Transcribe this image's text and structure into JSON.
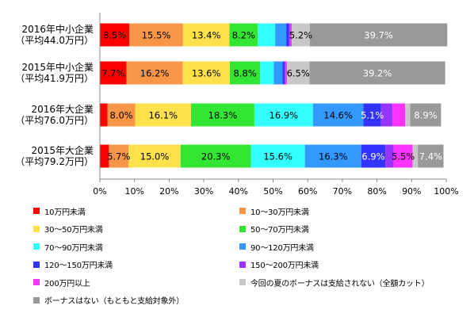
{
  "chart_data": {
    "type": "bar",
    "orientation": "horizontal",
    "stacked": true,
    "categories": [
      [
        "2016年中小企業",
        "（平均44.0万円）"
      ],
      [
        "2015年中小企業",
        "（平均41.9万円）"
      ],
      [
        "2016年大企業",
        "（平均76.0万円）"
      ],
      [
        "2015年大企業",
        "（平均79.2万円）"
      ]
    ],
    "series": [
      {
        "name": "10万円未満",
        "color": "#ff0000",
        "values": [
          8.5,
          7.7,
          2.2,
          2.6
        ]
      },
      {
        "name": "10～30万円未満",
        "color": "#f79646",
        "values": [
          15.5,
          16.2,
          8.0,
          5.7
        ]
      },
      {
        "name": "30～50万円未満",
        "color": "#ffe04d",
        "values": [
          13.4,
          13.6,
          16.1,
          15.0
        ]
      },
      {
        "name": "50～70万円未満",
        "color": "#33e633",
        "values": [
          8.2,
          8.8,
          18.3,
          20.3
        ]
      },
      {
        "name": "70～90万円未満",
        "color": "#33ffff",
        "values": [
          5.0,
          3.9,
          16.9,
          15.6
        ]
      },
      {
        "name": "90～120万円未満",
        "color": "#3399ff",
        "values": [
          3.2,
          2.5,
          14.6,
          16.3
        ]
      },
      {
        "name": "120～150万円未満",
        "color": "#3333ff",
        "values": [
          0.8,
          0.6,
          5.1,
          6.9
        ]
      },
      {
        "name": "150～200万円未満",
        "color": "#9933ff",
        "values": [
          0.3,
          0.3,
          3.3,
          2.4
        ]
      },
      {
        "name": "200万円以上",
        "color": "#ff33ff",
        "values": [
          0.5,
          0.4,
          3.6,
          5.5
        ]
      },
      {
        "name": "今回の夏のボーナスは支給されない（全額カット）",
        "color": "#c8c8c8",
        "values": [
          5.2,
          6.5,
          1.5,
          1.5
        ]
      },
      {
        "name": "ボーナスはない（もともと支給対象外）",
        "color": "#999999",
        "values": [
          39.7,
          39.2,
          8.9,
          7.4
        ]
      }
    ],
    "data_labels": [
      [
        [
          "8.5%",
          0
        ],
        [
          "15.5%",
          1
        ],
        [
          "13.4%",
          2
        ],
        [
          "8.2%",
          3
        ],
        [
          "5.2%",
          9
        ],
        [
          "39.7%",
          10
        ]
      ],
      [
        [
          "7.7%",
          0
        ],
        [
          "16.2%",
          1
        ],
        [
          "13.6%",
          2
        ],
        [
          "8.8%",
          3
        ],
        [
          "6.5%",
          9
        ],
        [
          "39.2%",
          10
        ]
      ],
      [
        [
          "8.0%",
          1
        ],
        [
          "16.1%",
          2
        ],
        [
          "18.3%",
          3
        ],
        [
          "16.9%",
          4
        ],
        [
          "14.6%",
          5
        ],
        [
          "5.1%",
          6
        ],
        [
          "8.9%",
          10
        ]
      ],
      [
        [
          "5.7%",
          1
        ],
        [
          "15.0%",
          2
        ],
        [
          "20.3%",
          3
        ],
        [
          "15.6%",
          4
        ],
        [
          "16.3%",
          5
        ],
        [
          "6.9%",
          6
        ],
        [
          "5.5%",
          8
        ],
        [
          "7.4%",
          10
        ]
      ]
    ],
    "x_ticks": [
      "0%",
      "10%",
      "20%",
      "30%",
      "40%",
      "50%",
      "60%",
      "70%",
      "80%",
      "90%",
      "100%"
    ],
    "xlim": [
      0,
      100
    ],
    "title": "",
    "xlabel": "",
    "ylabel": "",
    "grid": false,
    "legend_position": "bottom"
  }
}
